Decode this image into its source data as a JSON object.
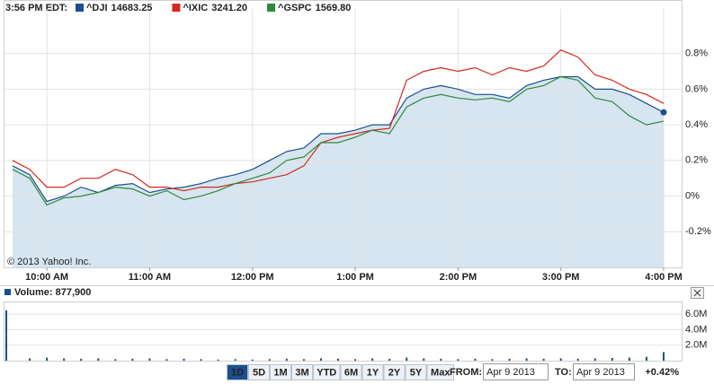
{
  "header": {
    "time": "3:56 PM EDT:"
  },
  "chart_data": [
    {
      "type": "line",
      "watermark": "© 2013 Yahoo! Inc.",
      "categories": [
        null,
        null,
        "10:00 AM",
        null,
        null,
        null,
        null,
        null,
        "11:00 AM",
        null,
        null,
        null,
        null,
        null,
        "12:00 PM",
        null,
        null,
        null,
        null,
        null,
        "1:00 PM",
        null,
        null,
        null,
        null,
        null,
        "2:00 PM",
        null,
        null,
        null,
        null,
        null,
        "3:00 PM",
        null,
        null,
        null,
        null,
        null,
        "4:00 PM"
      ],
      "series": [
        {
          "name": "^DJI",
          "quote": "14683.25",
          "color": "#1c4f8f",
          "area": true,
          "values": [
            0.17,
            0.12,
            -0.03,
            0.0,
            0.05,
            0.02,
            0.06,
            0.07,
            0.02,
            0.04,
            0.05,
            0.07,
            0.1,
            0.12,
            0.15,
            0.2,
            0.25,
            0.27,
            0.35,
            0.35,
            0.37,
            0.4,
            0.4,
            0.55,
            0.6,
            0.62,
            0.6,
            0.57,
            0.57,
            0.55,
            0.62,
            0.65,
            0.67,
            0.67,
            0.6,
            0.6,
            0.57,
            0.52,
            0.47
          ]
        },
        {
          "name": "^IXIC",
          "quote": "3241.20",
          "color": "#d42a1e",
          "values": [
            0.2,
            0.15,
            0.05,
            0.05,
            0.1,
            0.1,
            0.15,
            0.12,
            0.05,
            0.05,
            0.03,
            0.05,
            0.05,
            0.07,
            0.08,
            0.1,
            0.12,
            0.17,
            0.3,
            0.33,
            0.35,
            0.37,
            0.38,
            0.65,
            0.7,
            0.72,
            0.7,
            0.72,
            0.68,
            0.72,
            0.7,
            0.73,
            0.82,
            0.78,
            0.68,
            0.65,
            0.6,
            0.57,
            0.52
          ]
        },
        {
          "name": "^GSPC",
          "quote": "1569.80",
          "color": "#2d8a3c",
          "values": [
            0.15,
            0.1,
            -0.05,
            -0.01,
            0.0,
            0.02,
            0.05,
            0.04,
            0.0,
            0.03,
            -0.02,
            0.0,
            0.03,
            0.07,
            0.1,
            0.13,
            0.2,
            0.22,
            0.3,
            0.3,
            0.33,
            0.37,
            0.35,
            0.5,
            0.55,
            0.57,
            0.55,
            0.54,
            0.55,
            0.53,
            0.6,
            0.62,
            0.67,
            0.65,
            0.55,
            0.53,
            0.45,
            0.4,
            0.42
          ]
        }
      ],
      "ylim": [
        -0.4,
        1.05
      ],
      "yticks": [
        {
          "value": -0.2,
          "label": "-0.2%"
        },
        {
          "value": 0,
          "label": "0%"
        },
        {
          "value": 0.2,
          "label": "0.2%"
        },
        {
          "value": 0.4,
          "label": "0.4%"
        },
        {
          "value": 0.6,
          "label": "0.6%"
        },
        {
          "value": 0.8,
          "label": "0.8%"
        }
      ],
      "grid": true
    },
    {
      "type": "bar",
      "title": "Volume: 877,900",
      "color": "#1c4f8f",
      "values": [
        6500000,
        300000,
        400000,
        300000,
        250000,
        300000,
        200000,
        250000,
        300000,
        200000,
        250000,
        200000,
        150000,
        200000,
        150000,
        200000,
        250000,
        200000,
        300000,
        250000,
        200000,
        300000,
        250000,
        400000,
        300000,
        250000,
        200000,
        250000,
        200000,
        250000,
        300000,
        250000,
        300000,
        250000,
        300000,
        350000,
        400000,
        500000,
        1100000
      ],
      "ylim": [
        0,
        7400000
      ],
      "yticks": [
        {
          "value": 2000000,
          "label": "2.0M"
        },
        {
          "value": 4000000,
          "label": "4.0M"
        },
        {
          "value": 6000000,
          "label": "6.0M"
        }
      ],
      "grid": true
    }
  ],
  "controls": {
    "ranges": [
      "1D",
      "5D",
      "1M",
      "3M",
      "YTD",
      "6M",
      "1Y",
      "2Y",
      "5Y",
      "Max"
    ],
    "selected": "1D",
    "from_label": "FROM:",
    "from": "Apr 9 2013",
    "to_label": "TO:",
    "to": "Apr 9 2013",
    "change": "+0.42%"
  }
}
